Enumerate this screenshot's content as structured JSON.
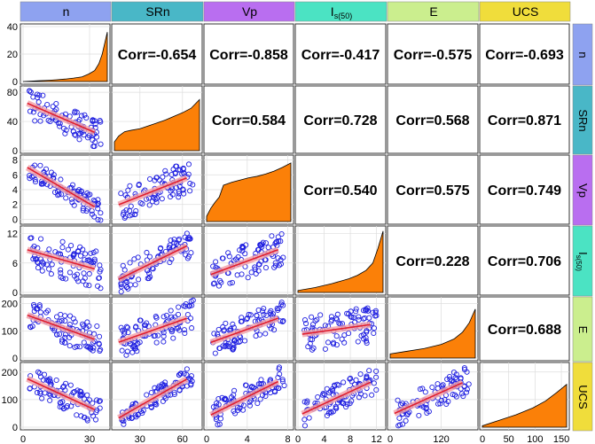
{
  "chart_data": {
    "type": "scatter-matrix",
    "variables": [
      "n",
      "SRn",
      "Vp",
      "I_s(50)",
      "E",
      "UCS"
    ],
    "header_labels": [
      {
        "main": "n",
        "sub": ""
      },
      {
        "main": "SRn",
        "sub": ""
      },
      {
        "main": "Vp",
        "sub": ""
      },
      {
        "main": "I",
        "sub": "s(50)"
      },
      {
        "main": "E",
        "sub": ""
      },
      {
        "main": "UCS",
        "sub": ""
      }
    ],
    "header_colors": [
      "#8ea2f0",
      "#49b7c7",
      "#b96ef0",
      "#4be3c3",
      "#cbee8e",
      "#f0dd3b"
    ],
    "row_colors": [
      "#8ea2f0",
      "#49b7c7",
      "#b96ef0",
      "#4be3c3",
      "#cbee8e",
      "#f0dd3b"
    ],
    "axis_ticks": {
      "n": [
        0,
        30
      ],
      "SRn": [
        30,
        60
      ],
      "Vp": [
        0,
        4,
        8
      ],
      "I_s(50)": [
        0,
        4,
        8,
        12
      ],
      "E": [
        0,
        120
      ],
      "UCS": [
        0,
        50,
        100,
        150
      ]
    },
    "y_ticks": {
      "n": [
        0,
        20,
        40
      ],
      "SRn": [
        0,
        40,
        80
      ],
      "Vp": [
        0,
        2,
        4,
        6,
        8
      ],
      "I_s(50)": [
        0,
        6,
        12
      ],
      "E": [
        0,
        100,
        200
      ],
      "UCS": [
        0,
        100,
        200
      ]
    },
    "ranges": {
      "n": [
        0,
        38
      ],
      "SRn": [
        12,
        72
      ],
      "Vp": [
        0,
        8.3
      ],
      "I_s(50)": [
        0,
        13
      ],
      "E": [
        0,
        200
      ],
      "UCS": [
        0,
        160
      ]
    },
    "y_ranges": {
      "n": [
        0,
        40
      ],
      "SRn": [
        0,
        85
      ],
      "Vp": [
        -0.3,
        8.3
      ],
      "I_s(50)": [
        0,
        13
      ],
      "E": [
        0,
        215
      ],
      "UCS": [
        0,
        225
      ]
    },
    "correlations": [
      {
        "row": 0,
        "col": 1,
        "label": "Corr=-0.654"
      },
      {
        "row": 0,
        "col": 2,
        "label": "Corr=-0.858"
      },
      {
        "row": 0,
        "col": 3,
        "label": "Corr=-0.417"
      },
      {
        "row": 0,
        "col": 4,
        "label": "Corr=-0.575"
      },
      {
        "row": 0,
        "col": 5,
        "label": "Corr=-0.693"
      },
      {
        "row": 1,
        "col": 2,
        "label": "Corr=0.584"
      },
      {
        "row": 1,
        "col": 3,
        "label": "Corr=0.728"
      },
      {
        "row": 1,
        "col": 4,
        "label": "Corr=0.568"
      },
      {
        "row": 1,
        "col": 5,
        "label": "Corr=0.871"
      },
      {
        "row": 2,
        "col": 3,
        "label": "Corr=0.540"
      },
      {
        "row": 2,
        "col": 4,
        "label": "Corr=0.575"
      },
      {
        "row": 2,
        "col": 5,
        "label": "Corr=0.749"
      },
      {
        "row": 3,
        "col": 4,
        "label": "Corr=0.228"
      },
      {
        "row": 3,
        "col": 5,
        "label": "Corr=0.706"
      },
      {
        "row": 4,
        "col": 5,
        "label": "Corr=0.688"
      }
    ],
    "diagonal_cumulative": {
      "n": [
        [
          0,
          0
        ],
        [
          0.1,
          0.3
        ],
        [
          0.2,
          0.6
        ],
        [
          0.3,
          0.9
        ],
        [
          0.4,
          1.3
        ],
        [
          0.5,
          1.8
        ],
        [
          0.6,
          2.5
        ],
        [
          0.7,
          3.4
        ],
        [
          0.78,
          5.5
        ],
        [
          0.85,
          8
        ],
        [
          0.9,
          13
        ],
        [
          0.94,
          20
        ],
        [
          0.97,
          28
        ],
        [
          1.0,
          36
        ]
      ],
      "SRn": [
        [
          0,
          12
        ],
        [
          0.05,
          20
        ],
        [
          0.12,
          26
        ],
        [
          0.2,
          28
        ],
        [
          0.3,
          30
        ],
        [
          0.4,
          34
        ],
        [
          0.5,
          38
        ],
        [
          0.6,
          42
        ],
        [
          0.7,
          47
        ],
        [
          0.8,
          52
        ],
        [
          0.9,
          58
        ],
        [
          1.0,
          70
        ]
      ],
      "Vp": [
        [
          0,
          0.4
        ],
        [
          0.05,
          1.5
        ],
        [
          0.1,
          2.3
        ],
        [
          0.15,
          3.0
        ],
        [
          0.2,
          4.6
        ],
        [
          0.3,
          5.0
        ],
        [
          0.4,
          5.3
        ],
        [
          0.5,
          5.6
        ],
        [
          0.6,
          5.8
        ],
        [
          0.7,
          6.1
        ],
        [
          0.8,
          6.5
        ],
        [
          0.9,
          7.0
        ],
        [
          1.0,
          7.6
        ]
      ],
      "I_s(50)": [
        [
          0,
          0.4
        ],
        [
          0.2,
          1.0
        ],
        [
          0.4,
          1.8
        ],
        [
          0.6,
          2.8
        ],
        [
          0.7,
          3.5
        ],
        [
          0.8,
          4.5
        ],
        [
          0.88,
          6
        ],
        [
          0.94,
          9
        ],
        [
          1.0,
          12.5
        ]
      ],
      "E": [
        [
          0,
          15
        ],
        [
          0.2,
          25
        ],
        [
          0.4,
          35
        ],
        [
          0.6,
          50
        ],
        [
          0.75,
          70
        ],
        [
          0.85,
          95
        ],
        [
          0.93,
          130
        ],
        [
          1.0,
          180
        ]
      ],
      "UCS": [
        [
          0,
          5
        ],
        [
          0.2,
          25
        ],
        [
          0.4,
          45
        ],
        [
          0.6,
          70
        ],
        [
          0.75,
          95
        ],
        [
          0.88,
          125
        ],
        [
          1.0,
          155
        ]
      ]
    },
    "colors": {
      "points": "#1f1fe0",
      "regression": "#e01f2f",
      "band": "#f2a0a8",
      "area": "#fb8008"
    }
  }
}
